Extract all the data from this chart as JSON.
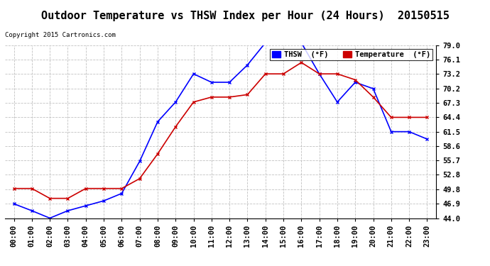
{
  "title": "Outdoor Temperature vs THSW Index per Hour (24 Hours)  20150515",
  "copyright": "Copyright 2015 Cartronics.com",
  "legend_thsw": "THSW  (°F)",
  "legend_temp": "Temperature  (°F)",
  "x_labels": [
    "00:00",
    "01:00",
    "02:00",
    "03:00",
    "04:00",
    "05:00",
    "06:00",
    "07:00",
    "08:00",
    "09:00",
    "10:00",
    "11:00",
    "12:00",
    "13:00",
    "14:00",
    "15:00",
    "16:00",
    "17:00",
    "18:00",
    "19:00",
    "20:00",
    "21:00",
    "22:00",
    "23:00"
  ],
  "thsw": [
    46.9,
    45.5,
    44.0,
    45.5,
    46.5,
    47.5,
    49.0,
    55.5,
    63.5,
    67.5,
    73.2,
    71.5,
    71.5,
    75.0,
    79.5,
    79.5,
    79.5,
    73.2,
    67.5,
    71.5,
    70.2,
    61.5,
    61.5,
    60.0
  ],
  "temp": [
    50.0,
    50.0,
    48.0,
    48.0,
    50.0,
    50.0,
    50.0,
    52.0,
    57.0,
    62.5,
    67.5,
    68.5,
    68.5,
    69.0,
    73.2,
    73.2,
    75.5,
    73.2,
    73.2,
    72.0,
    68.5,
    64.4,
    64.4,
    64.4
  ],
  "ylim": [
    44.0,
    79.0
  ],
  "yticks": [
    44.0,
    46.9,
    49.8,
    52.8,
    55.7,
    58.6,
    61.5,
    64.4,
    67.3,
    70.2,
    73.2,
    76.1,
    79.0
  ],
  "thsw_color": "#0000ff",
  "temp_color": "#cc0000",
  "background_color": "#ffffff",
  "grid_color": "#bbbbbb",
  "title_fontsize": 11,
  "tick_fontsize": 7.5,
  "copyright_fontsize": 6.5
}
